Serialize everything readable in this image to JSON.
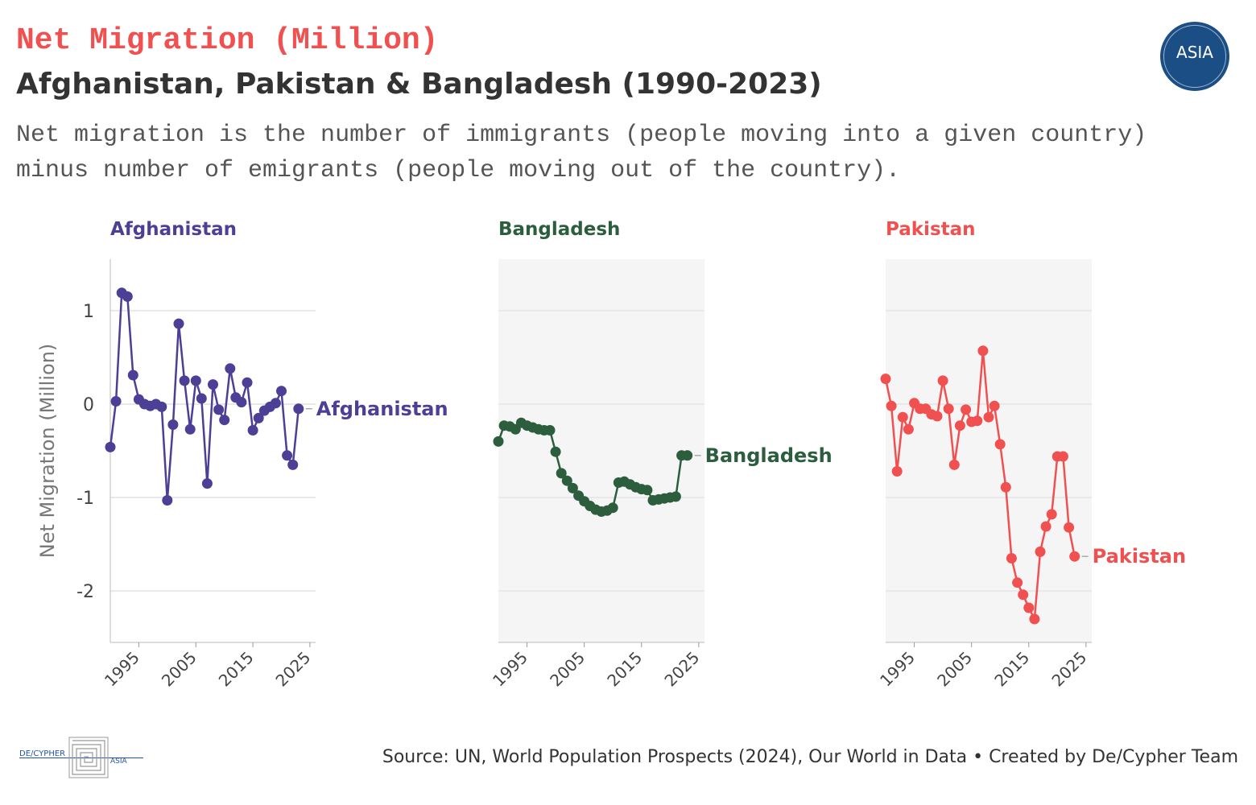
{
  "header": {
    "title": "Net Migration (Million)",
    "subtitle": "Afghanistan, Pakistan & Bangladesh (1990-2023)",
    "description": "Net migration is the number of immigrants (people moving into a given country) minus number of emigrants (people moving out of the country)."
  },
  "logo": {
    "text": "ASIA",
    "color": "#1a4e85"
  },
  "footer": {
    "source": "Source: UN, World Population Prospects (2024), Our World in Data • Created by De/Cypher Team",
    "brand_left": "DE/CYPHER",
    "brand_right": "ASIA"
  },
  "colors": {
    "Afghanistan": "#4b3f96",
    "Bangladesh": "#2c5e3e",
    "Pakistan": "#f05050"
  },
  "chart_data": {
    "type": "line",
    "facets": [
      "Afghanistan",
      "Bangladesh",
      "Pakistan"
    ],
    "ylabel": "Net Migration (Million)",
    "xlabel": "",
    "ylim": [
      -2.55,
      1.55
    ],
    "xlim": [
      1990,
      2026
    ],
    "yticks": [
      1,
      0,
      -1,
      -2
    ],
    "xticks": [
      1995,
      2005,
      2015,
      2025
    ],
    "grid": true,
    "series": [
      {
        "name": "Afghanistan",
        "x": [
          1990,
          1991,
          1992,
          1993,
          1994,
          1995,
          1996,
          1997,
          1998,
          1999,
          2000,
          2001,
          2002,
          2003,
          2004,
          2005,
          2006,
          2007,
          2008,
          2009,
          2010,
          2011,
          2012,
          2013,
          2014,
          2015,
          2016,
          2017,
          2018,
          2019,
          2020,
          2021,
          2022,
          2023
        ],
        "values": [
          -0.46,
          0.03,
          1.19,
          1.15,
          0.31,
          0.05,
          0.0,
          -0.02,
          0.0,
          -0.03,
          -1.03,
          -0.22,
          0.86,
          0.25,
          -0.27,
          0.25,
          0.06,
          -0.85,
          0.21,
          -0.06,
          -0.17,
          0.38,
          0.07,
          0.02,
          0.23,
          -0.28,
          -0.15,
          -0.07,
          -0.03,
          0.01,
          0.14,
          -0.55,
          -0.65,
          -0.05
        ]
      },
      {
        "name": "Bangladesh",
        "x": [
          1990,
          1991,
          1992,
          1993,
          1994,
          1995,
          1996,
          1997,
          1998,
          1999,
          2000,
          2001,
          2002,
          2003,
          2004,
          2005,
          2006,
          2007,
          2008,
          2009,
          2010,
          2011,
          2012,
          2013,
          2014,
          2015,
          2016,
          2017,
          2018,
          2019,
          2020,
          2021,
          2022,
          2023
        ],
        "values": [
          -0.4,
          -0.23,
          -0.24,
          -0.27,
          -0.2,
          -0.23,
          -0.25,
          -0.27,
          -0.28,
          -0.28,
          -0.51,
          -0.74,
          -0.82,
          -0.9,
          -0.98,
          -1.04,
          -1.09,
          -1.13,
          -1.15,
          -1.14,
          -1.11,
          -0.84,
          -0.83,
          -0.86,
          -0.89,
          -0.91,
          -0.92,
          -1.03,
          -1.02,
          -1.01,
          -1.0,
          -0.99,
          -0.55,
          -0.55
        ]
      },
      {
        "name": "Pakistan",
        "x": [
          1990,
          1991,
          1992,
          1993,
          1994,
          1995,
          1996,
          1997,
          1998,
          1999,
          2000,
          2001,
          2002,
          2003,
          2004,
          2005,
          2006,
          2007,
          2008,
          2009,
          2010,
          2011,
          2012,
          2013,
          2014,
          2015,
          2016,
          2017,
          2018,
          2019,
          2020,
          2021,
          2022,
          2023
        ],
        "values": [
          0.27,
          -0.02,
          -0.72,
          -0.14,
          -0.27,
          0.01,
          -0.05,
          -0.05,
          -0.11,
          -0.13,
          0.25,
          -0.05,
          -0.65,
          -0.23,
          -0.06,
          -0.19,
          -0.18,
          0.57,
          -0.14,
          -0.02,
          -0.43,
          -0.89,
          -1.65,
          -1.91,
          -2.04,
          -2.18,
          -2.3,
          -1.58,
          -1.31,
          -1.18,
          -0.56,
          -0.56,
          -1.32,
          -1.63
        ]
      }
    ]
  }
}
